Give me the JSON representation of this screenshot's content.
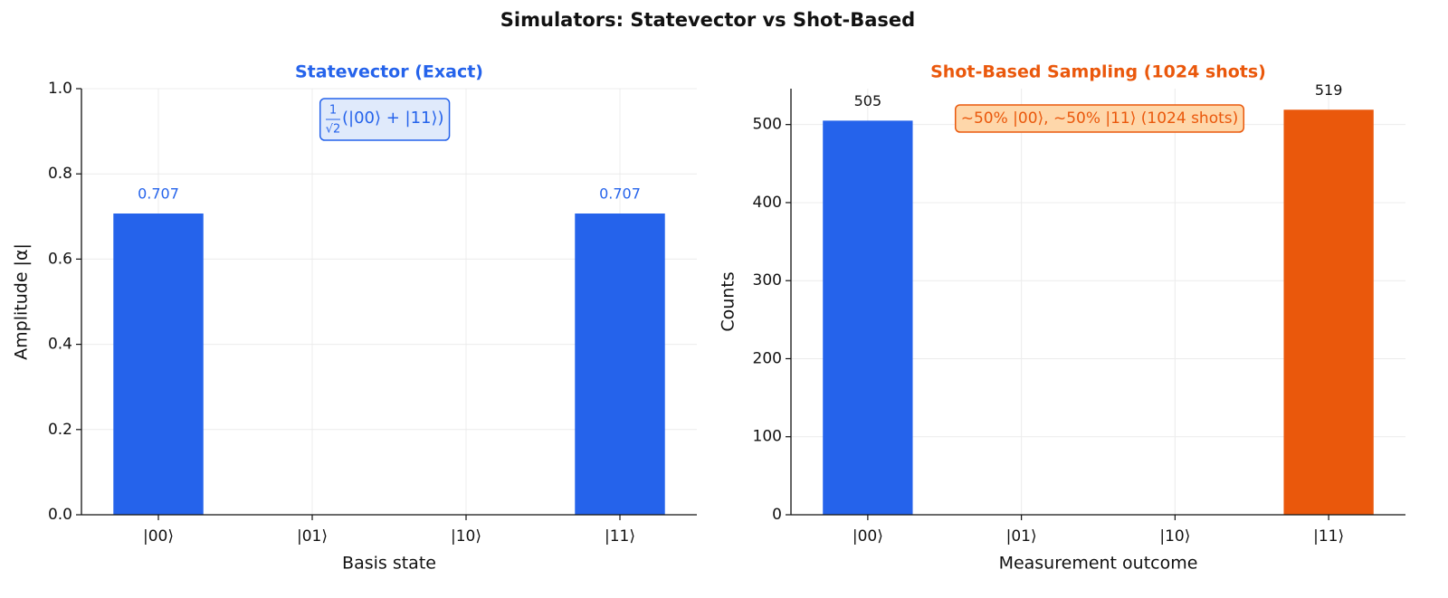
{
  "title": "Simulators: Statevector vs Shot-Based",
  "chart_data": [
    {
      "type": "bar",
      "title": "Statevector (Exact)",
      "title_color": "#2563eb",
      "xlabel": "Basis state",
      "ylabel": "Amplitude  |α|",
      "categories": [
        "|00⟩",
        "|01⟩",
        "|10⟩",
        "|11⟩"
      ],
      "values": [
        0.707,
        0,
        0,
        0.707
      ],
      "value_labels": [
        "0.707",
        null,
        null,
        "0.707"
      ],
      "value_label_color": "#2563eb",
      "colors": [
        "#2563eb",
        "#2563eb",
        "#2563eb",
        "#2563eb"
      ],
      "ylim": [
        0,
        1
      ],
      "yticks": [
        {
          "value": 0,
          "label": "0.0"
        },
        0.2,
        0.4,
        0.6,
        0.8,
        {
          "value": 1,
          "label": "1.0"
        }
      ],
      "grid": true,
      "annotation": {
        "numerator": "1",
        "denominator": "√2",
        "text": "(|00⟩ + |11⟩)",
        "color": "#2563eb",
        "background": "#e0eafb"
      }
    },
    {
      "type": "bar",
      "title": "Shot-Based Sampling (1024 shots)",
      "title_color": "#ea580c",
      "xlabel": "Measurement outcome",
      "ylabel": "Counts",
      "categories": [
        "|00⟩",
        "|01⟩",
        "|10⟩",
        "|11⟩"
      ],
      "values": [
        505,
        0,
        0,
        519
      ],
      "value_labels": [
        "505",
        null,
        null,
        "519"
      ],
      "value_label_color": "#111111",
      "colors": [
        "#2563eb",
        "#2563eb",
        "#2563eb",
        "#ea580c"
      ],
      "ylim": [
        0,
        546
      ],
      "yticks": [
        0,
        100,
        200,
        300,
        400,
        500
      ],
      "grid": true,
      "annotation": {
        "text": "~50% |00⟩, ~50% |11⟩  (1024 shots)",
        "color": "#ea580c",
        "background": "#fed7aa"
      }
    }
  ]
}
